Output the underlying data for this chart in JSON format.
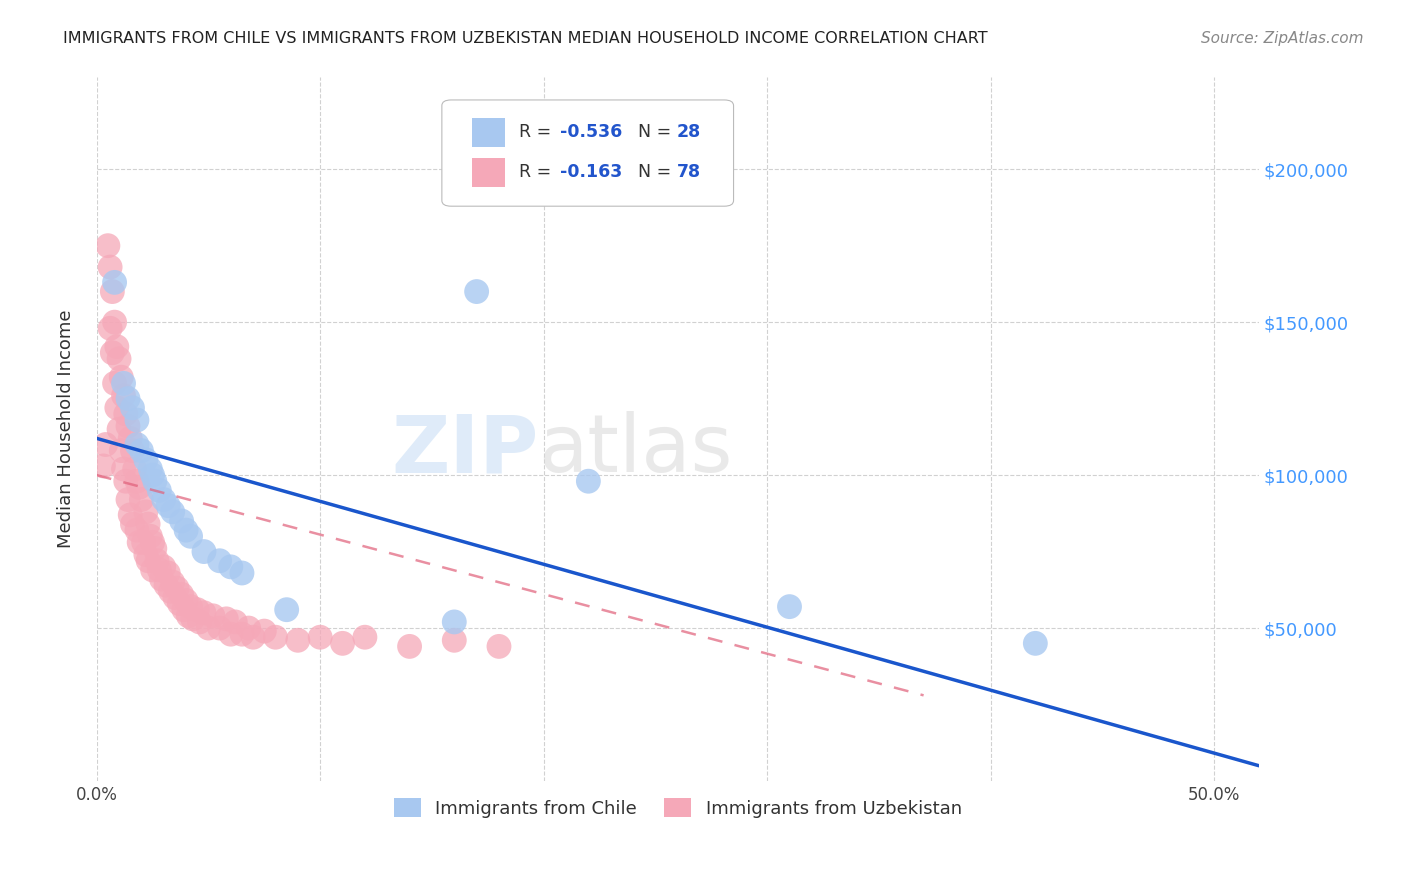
{
  "title": "IMMIGRANTS FROM CHILE VS IMMIGRANTS FROM UZBEKISTAN MEDIAN HOUSEHOLD INCOME CORRELATION CHART",
  "source": "Source: ZipAtlas.com",
  "ylabel": "Median Household Income",
  "y_tick_labels": [
    "$50,000",
    "$100,000",
    "$150,000",
    "$200,000"
  ],
  "y_tick_values": [
    50000,
    100000,
    150000,
    200000
  ],
  "xlim": [
    0.0,
    0.52
  ],
  "ylim": [
    0,
    230000
  ],
  "legend_r1": "-0.536",
  "legend_n1": "28",
  "legend_r2": "-0.163",
  "legend_n2": "78",
  "legend_label1": "Immigrants from Chile",
  "legend_label2": "Immigrants from Uzbekistan",
  "color_chile": "#a8c8f0",
  "color_uzbekistan": "#f5a8b8",
  "trendline_chile_color": "#1a56cc",
  "trendline_uzbekistan_color": "#e0607a",
  "background_color": "#ffffff",
  "chile_x": [
    0.008,
    0.012,
    0.014,
    0.016,
    0.018,
    0.018,
    0.02,
    0.022,
    0.024,
    0.025,
    0.026,
    0.028,
    0.03,
    0.032,
    0.034,
    0.038,
    0.04,
    0.042,
    0.048,
    0.055,
    0.06,
    0.065,
    0.085,
    0.16,
    0.17,
    0.22,
    0.31,
    0.42
  ],
  "chile_y": [
    163000,
    130000,
    125000,
    122000,
    118000,
    110000,
    108000,
    105000,
    102000,
    100000,
    98000,
    95000,
    92000,
    90000,
    88000,
    85000,
    82000,
    80000,
    75000,
    72000,
    70000,
    68000,
    56000,
    52000,
    160000,
    98000,
    57000,
    45000
  ],
  "uzbekistan_x": [
    0.003,
    0.004,
    0.005,
    0.006,
    0.006,
    0.007,
    0.007,
    0.008,
    0.008,
    0.009,
    0.009,
    0.01,
    0.01,
    0.011,
    0.011,
    0.012,
    0.012,
    0.013,
    0.013,
    0.014,
    0.014,
    0.015,
    0.015,
    0.016,
    0.016,
    0.017,
    0.018,
    0.018,
    0.019,
    0.019,
    0.02,
    0.021,
    0.022,
    0.022,
    0.023,
    0.023,
    0.024,
    0.025,
    0.025,
    0.026,
    0.027,
    0.028,
    0.029,
    0.03,
    0.031,
    0.032,
    0.033,
    0.034,
    0.035,
    0.036,
    0.037,
    0.038,
    0.039,
    0.04,
    0.041,
    0.042,
    0.043,
    0.045,
    0.046,
    0.048,
    0.05,
    0.052,
    0.055,
    0.058,
    0.06,
    0.062,
    0.065,
    0.068,
    0.07,
    0.075,
    0.08,
    0.09,
    0.1,
    0.11,
    0.12,
    0.14,
    0.16,
    0.18
  ],
  "uzbekistan_y": [
    103000,
    110000,
    175000,
    168000,
    148000,
    160000,
    140000,
    150000,
    130000,
    142000,
    122000,
    138000,
    115000,
    132000,
    108000,
    126000,
    102000,
    120000,
    98000,
    116000,
    92000,
    112000,
    87000,
    108000,
    84000,
    102000,
    98000,
    82000,
    96000,
    78000,
    92000,
    78000,
    88000,
    74000,
    84000,
    72000,
    80000,
    78000,
    69000,
    76000,
    72000,
    69000,
    66000,
    70000,
    64000,
    68000,
    62000,
    65000,
    60000,
    63000,
    58000,
    61000,
    56000,
    59000,
    54000,
    57000,
    53000,
    56000,
    52000,
    55000,
    50000,
    54000,
    50000,
    53000,
    48000,
    52000,
    48000,
    50000,
    47000,
    49000,
    47000,
    46000,
    47000,
    45000,
    47000,
    44000,
    46000,
    44000
  ]
}
